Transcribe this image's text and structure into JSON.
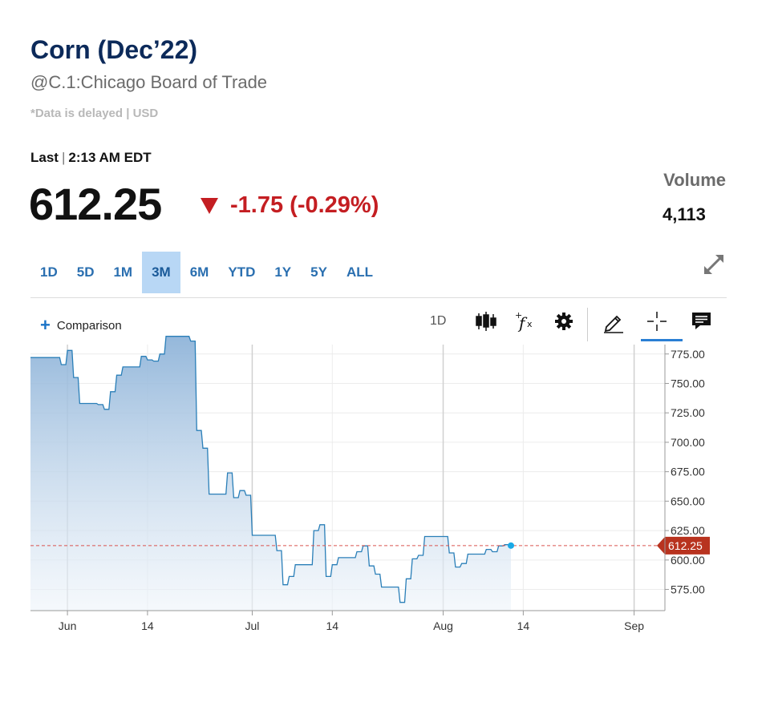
{
  "header": {
    "title": "Corn (Dec’22)",
    "subtitle": "@C.1:Chicago Board of Trade",
    "note": "*Data is delayed | USD"
  },
  "quote": {
    "last_label": "Last",
    "last_time": "2:13 AM EDT",
    "price": "612.25",
    "change": "-1.75 (-0.29%)",
    "volume_label": "Volume",
    "volume_value": "4,113"
  },
  "ranges": [
    "1D",
    "5D",
    "1M",
    "3M",
    "6M",
    "YTD",
    "1Y",
    "5Y",
    "ALL"
  ],
  "active_range": "3M",
  "toolbar": {
    "comparison_label": "Comparison",
    "interval_label": "1D",
    "icons": [
      "candlestick-icon",
      "function-icon",
      "settings-icon",
      "pencil-icon",
      "crosshair-icon",
      "comment-icon"
    ]
  },
  "colors": {
    "title": "#0c2a5a",
    "negative": "#c41e22",
    "line": "#2a7fb8",
    "active_range_bg": "#b8d7f5",
    "last_marker": "#1aa9e6"
  },
  "chart_data": {
    "type": "area",
    "x_tick_labels": [
      "Jun",
      "14",
      "Jul",
      "14",
      "Aug",
      "14",
      "Sep"
    ],
    "y_tick_labels": [
      "775.00",
      "750.00",
      "725.00",
      "700.00",
      "675.00",
      "650.00",
      "625.00",
      "600.00",
      "575.00"
    ],
    "ylim": [
      557,
      783
    ],
    "xlim": [
      "2022-05-26",
      "2022-09-06"
    ],
    "last_value_label": "612.25",
    "last_value": 612.25,
    "grid": true,
    "series": [
      {
        "x": [
          "2022-05-26",
          "2022-05-27",
          "2022-05-31",
          "2022-06-01",
          "2022-06-02",
          "2022-06-03",
          "2022-06-06",
          "2022-06-07",
          "2022-06-08",
          "2022-06-09",
          "2022-06-10",
          "2022-06-13",
          "2022-06-14",
          "2022-06-15",
          "2022-06-16",
          "2022-06-17",
          "2022-06-21",
          "2022-06-22",
          "2022-06-23",
          "2022-06-24",
          "2022-06-27",
          "2022-06-28",
          "2022-06-29",
          "2022-06-30",
          "2022-07-01",
          "2022-07-05",
          "2022-07-06",
          "2022-07-07",
          "2022-07-08",
          "2022-07-11",
          "2022-07-12",
          "2022-07-13",
          "2022-07-14",
          "2022-07-15",
          "2022-07-18",
          "2022-07-19",
          "2022-07-20",
          "2022-07-21",
          "2022-07-22",
          "2022-07-25",
          "2022-07-26",
          "2022-07-27",
          "2022-07-28",
          "2022-07-29",
          "2022-08-01",
          "2022-08-02",
          "2022-08-03",
          "2022-08-04",
          "2022-08-05",
          "2022-08-08",
          "2022-08-09",
          "2022-08-10",
          "2022-08-11",
          "2022-08-12"
        ],
        "values": [
          772,
          772,
          766,
          778,
          755,
          733,
          732,
          728,
          743,
          757,
          764,
          773,
          770,
          769,
          775,
          790,
          786,
          710,
          695,
          656,
          674,
          653,
          659,
          655,
          621,
          608,
          579,
          586,
          596,
          625,
          630,
          586,
          596,
          602,
          607,
          612,
          595,
          588,
          577,
          564,
          584,
          601,
          604,
          620,
          620,
          606,
          594,
          597,
          605,
          609,
          607,
          612,
          613,
          612.25
        ]
      }
    ]
  }
}
